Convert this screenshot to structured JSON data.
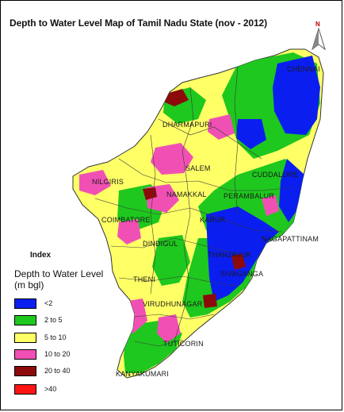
{
  "map": {
    "title": "Depth to Water Level Map of Tamil Nadu State (nov - 2012)",
    "north_arrow": {
      "letter": "N",
      "icon": "north-arrow-icon",
      "color": "#b30000"
    },
    "district_labels": [
      "DHARMAPURI",
      "SALEM",
      "CUDDALORE",
      "NILGIRIS",
      "NAMAKKAL",
      "PERAMBALUR",
      "COIMBATORE",
      "KARUR",
      "DINDIGUL",
      "THANJAVUR",
      "NAGAPATTINAM",
      "SIVAGANGA",
      "THENI",
      "VIRUDHUNAGAR",
      "TUTICORIN",
      "KANYAKUMARI",
      "CHENNAI"
    ]
  },
  "legend": {
    "index_heading": "Index",
    "title_line1": "Depth to Water Level",
    "title_line2": "(m bgl)",
    "items": [
      {
        "label": "<2",
        "color": "#0a1ef0"
      },
      {
        "label": "2 to 5",
        "color": "#1ec81e"
      },
      {
        "label": "5 to 10",
        "color": "#ffff66"
      },
      {
        "label": "10 to 20",
        "color": "#f050b4"
      },
      {
        "label": "20 to 40",
        "color": "#8c0a0a"
      },
      {
        "label": ">40",
        "color": "#ff1414"
      }
    ]
  }
}
